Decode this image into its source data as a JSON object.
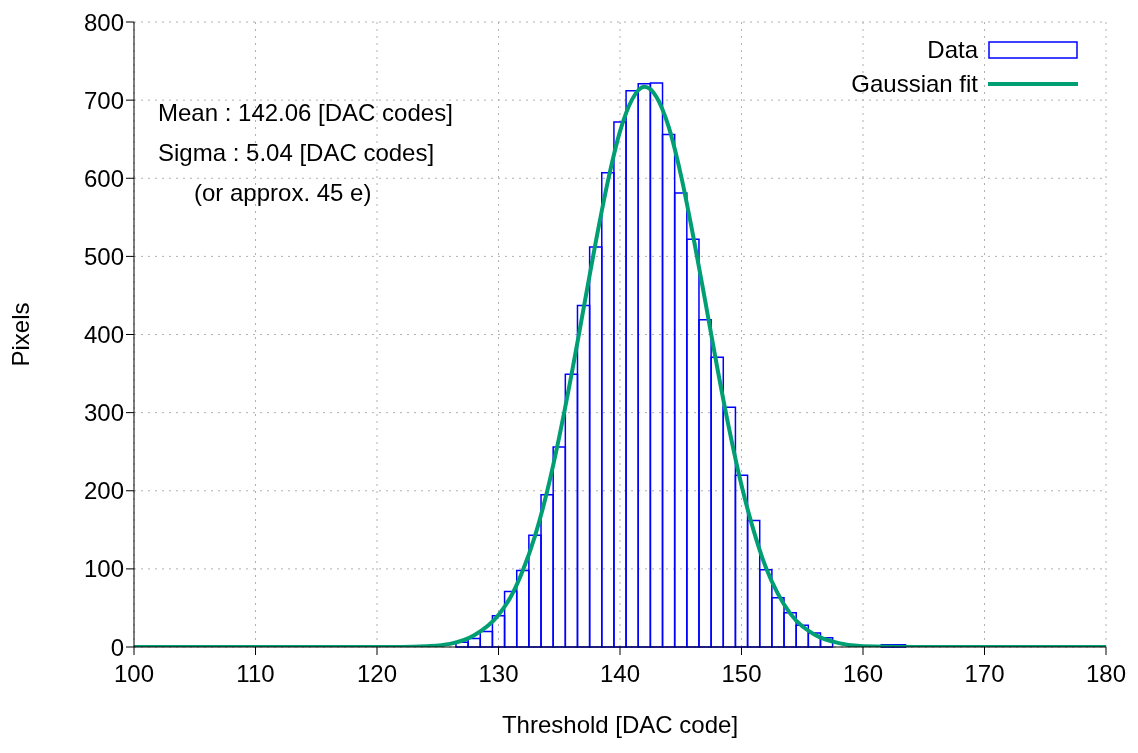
{
  "chart_data": {
    "type": "histogram",
    "xlabel": "Threshold [DAC code]",
    "ylabel": "Pixels",
    "xlim": [
      100,
      180
    ],
    "xticks": [
      100,
      110,
      120,
      130,
      140,
      150,
      160,
      170,
      180
    ],
    "ylim": [
      0,
      800
    ],
    "yticks": [
      0,
      100,
      200,
      300,
      400,
      500,
      600,
      700,
      800
    ],
    "grid": true,
    "legend": "top right",
    "annotations": [
      "Mean : 142.06 [DAC codes]",
      "Sigma : 5.04 [DAC codes]",
      "(or approx. 45 e)"
    ],
    "series": [
      {
        "name": "Data",
        "type": "histogram",
        "color": "#0000ff",
        "bins": [
          126.5,
          127.5,
          128.5,
          129.5,
          130.5,
          131.5,
          132.5,
          133.5,
          134.5,
          135.5,
          136.5,
          137.5,
          138.5,
          139.5,
          140.5,
          141.5,
          142.5,
          143.5,
          144.5,
          145.5,
          146.5,
          147.5,
          148.5,
          149.5,
          150.5,
          151.5,
          152.5,
          153.5,
          154.5,
          155.5,
          156.5,
          157.5,
          158.5,
          159.5,
          160.5,
          161.5,
          162.5,
          163.5
        ],
        "values": [
          6,
          11,
          20,
          40,
          71,
          98,
          143,
          195,
          256,
          349,
          437,
          512,
          607,
          672,
          712,
          721,
          722,
          656,
          581,
          522,
          419,
          371,
          307,
          220,
          162,
          99,
          63,
          44,
          28,
          18,
          12,
          0,
          0,
          0,
          0,
          3,
          3
        ]
      },
      {
        "name": "Gaussian fit",
        "type": "line",
        "color": "#009e73",
        "x": [
          100,
          118,
          122,
          124,
          126,
          128,
          130,
          131,
          132,
          133,
          134,
          135,
          136,
          137,
          138,
          139,
          140,
          141,
          142,
          143,
          144,
          145,
          146,
          147,
          148,
          149,
          150,
          151,
          152,
          153,
          154,
          156,
          158,
          160,
          164,
          180
        ],
        "values": [
          0,
          0,
          0,
          1,
          4,
          15,
          41,
          64,
          98,
          142,
          199,
          269,
          348,
          433,
          518,
          596,
          660,
          701,
          717,
          704,
          666,
          605,
          528,
          444,
          358,
          278,
          207,
          149,
          102,
          68,
          43,
          16,
          5,
          1,
          0,
          0
        ]
      }
    ]
  }
}
